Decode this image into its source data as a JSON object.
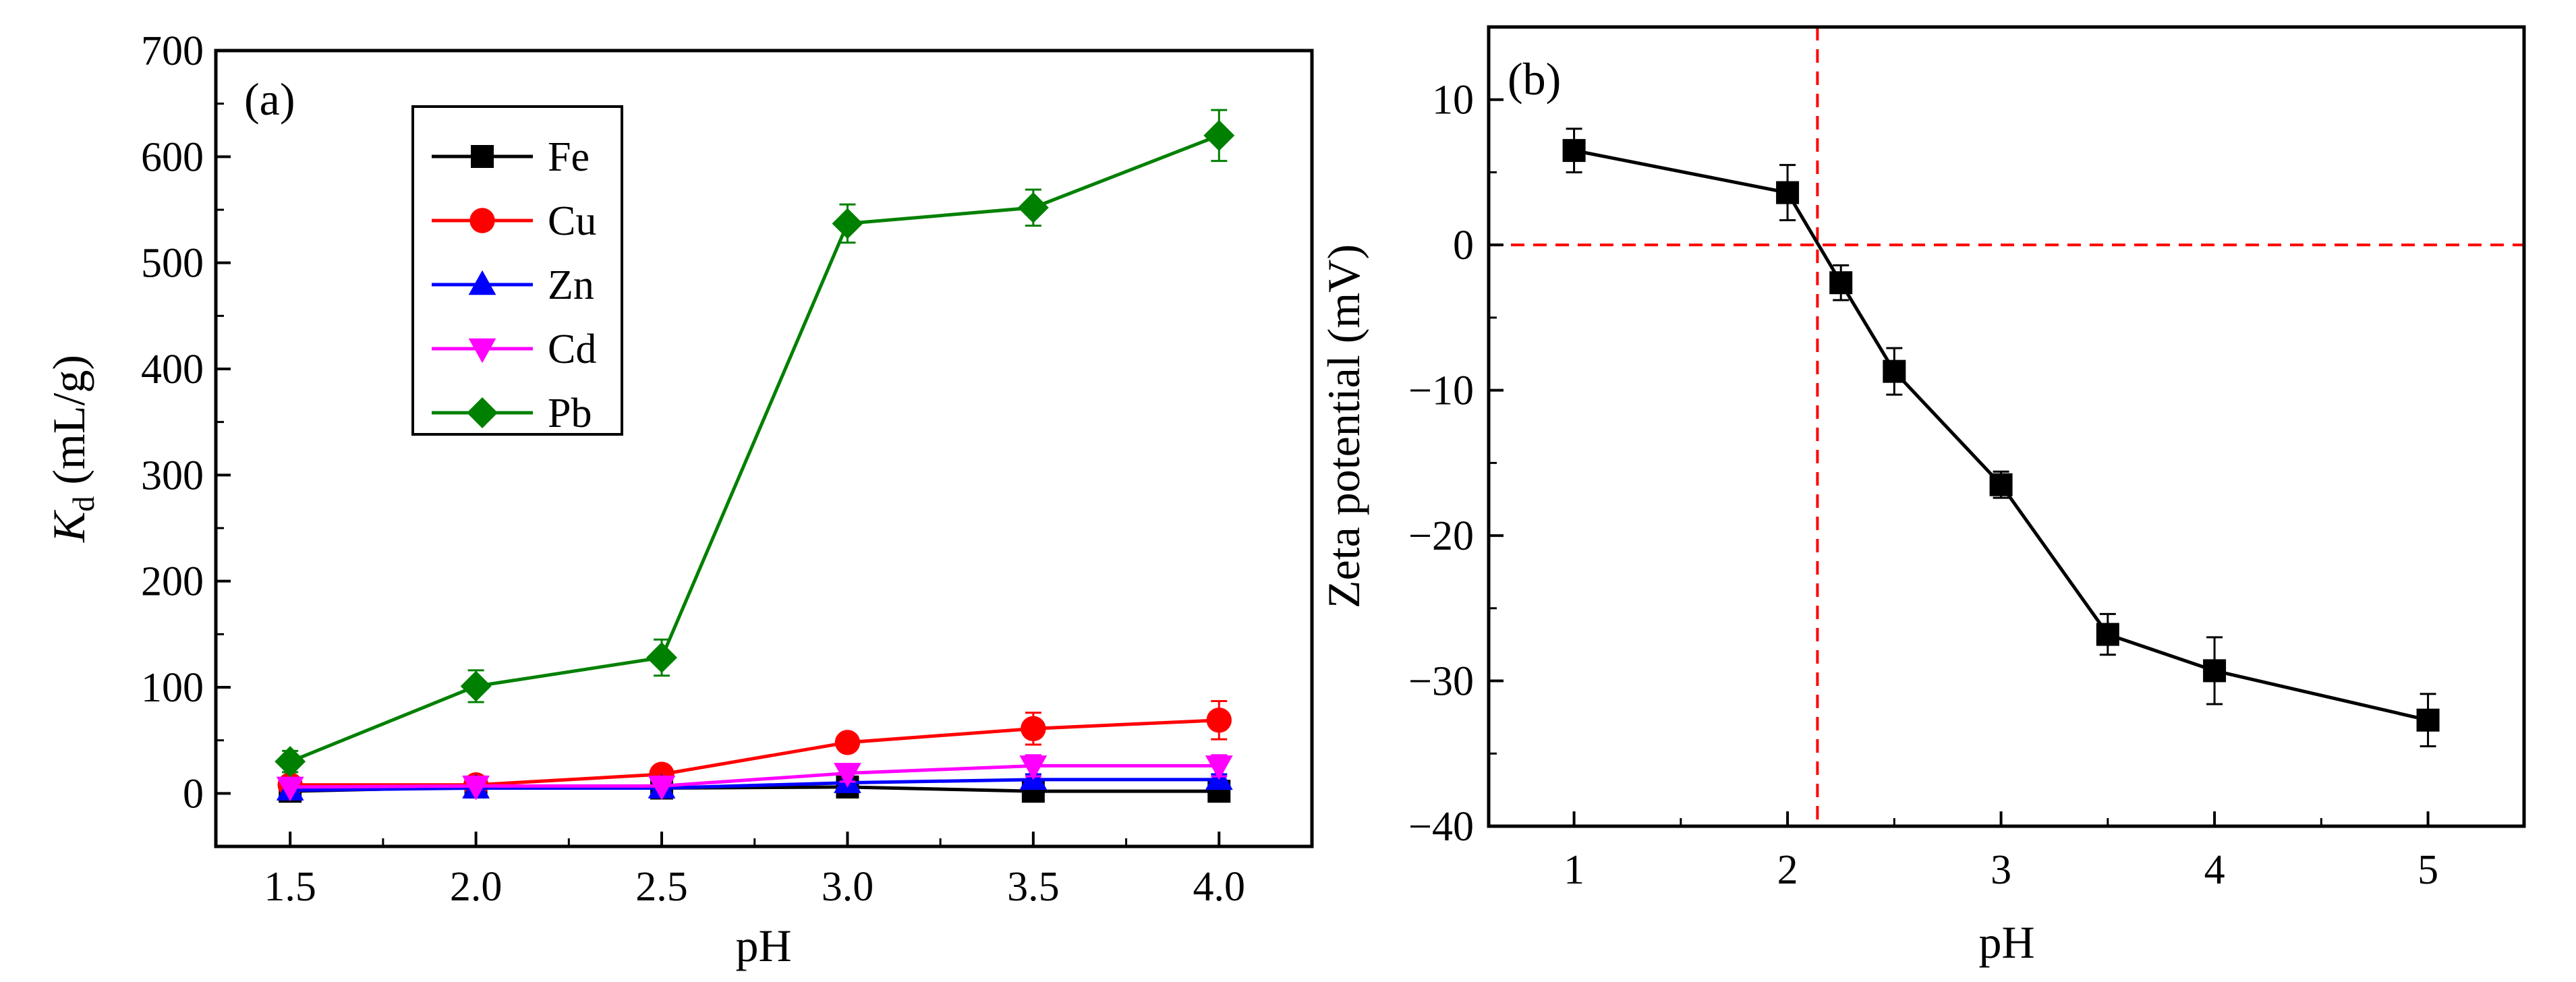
{
  "figure": {
    "background": "#ffffff"
  },
  "chart_data": [
    {
      "type": "line",
      "panel_label": "(a)",
      "xlabel": "pH",
      "ylabel": "K",
      "ylabel_sub": "d",
      "ylabel_unit": " (mL/g)",
      "xlim": [
        1.3,
        4.25
      ],
      "ylim": [
        -50,
        700
      ],
      "x": [
        1.5,
        2.0,
        2.5,
        3.0,
        3.5,
        4.0
      ],
      "x_tick_labels": [
        "1.5",
        "2.0",
        "2.5",
        "3.0",
        "3.5",
        "4.0"
      ],
      "y_ticks": [
        0,
        100,
        200,
        300,
        400,
        500,
        600,
        700
      ],
      "legend_position": "top-left",
      "series": [
        {
          "name": "Fe",
          "color": "#000000",
          "marker": "square",
          "values": [
            2,
            6,
            5,
            6,
            2,
            2
          ],
          "errors": [
            0,
            0,
            0,
            0,
            0,
            0
          ]
        },
        {
          "name": "Cu",
          "color": "#ff0000",
          "marker": "circle",
          "values": [
            8,
            8,
            18,
            48,
            61,
            69
          ],
          "errors": [
            0,
            0,
            0,
            0,
            15,
            18
          ]
        },
        {
          "name": "Zn",
          "color": "#0000ff",
          "marker": "triangle-up",
          "values": [
            3,
            5,
            5,
            10,
            13,
            13
          ],
          "errors": [
            0,
            0,
            0,
            0,
            5,
            5
          ]
        },
        {
          "name": "Cd",
          "color": "#ff00ff",
          "marker": "triangle-down",
          "values": [
            6,
            7,
            7,
            19,
            26,
            26
          ],
          "errors": [
            0,
            0,
            0,
            8,
            10,
            10
          ]
        },
        {
          "name": "Pb",
          "color": "#008000",
          "marker": "diamond",
          "values": [
            30,
            101,
            128,
            537,
            552,
            620
          ],
          "errors": [
            10,
            15,
            17,
            18,
            17,
            24
          ]
        }
      ]
    },
    {
      "type": "line",
      "panel_label": "(b)",
      "xlabel": "pH",
      "ylabel": "Zeta potential (mV)",
      "xlim": [
        0.6,
        5.45
      ],
      "ylim": [
        -40,
        15
      ],
      "x_ticks": [
        1,
        2,
        3,
        4,
        5
      ],
      "x_tick_labels": [
        "1",
        "2",
        "3",
        "4",
        "5"
      ],
      "y_ticks": [
        10,
        0,
        -10,
        -20,
        -30,
        -40
      ],
      "y_tick_labels": [
        "10",
        "0",
        "−10",
        "−20",
        "−30",
        "−40"
      ],
      "reference_lines": {
        "vertical_x": 2.14,
        "horizontal_y": 0,
        "color": "#ff0000",
        "style": "dashed"
      },
      "series": [
        {
          "name": "Zeta potential",
          "color": "#000000",
          "marker": "square",
          "x": [
            1.0,
            2.0,
            2.25,
            2.5,
            3.0,
            3.5,
            4.0,
            5.0
          ],
          "values": [
            6.5,
            3.6,
            -2.6,
            -8.7,
            -16.5,
            -26.8,
            -29.3,
            -32.7
          ],
          "errors": [
            1.5,
            1.9,
            1.2,
            1.6,
            0.9,
            1.4,
            2.3,
            1.8
          ]
        }
      ]
    }
  ]
}
